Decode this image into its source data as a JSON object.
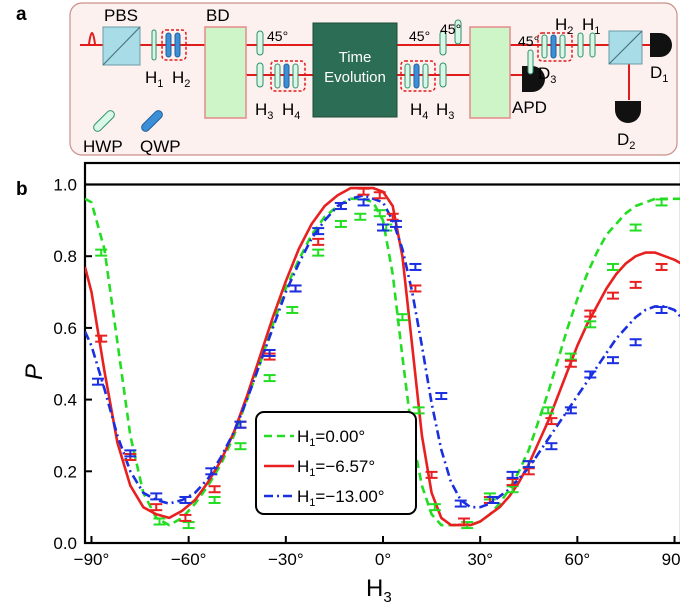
{
  "panel_a": {
    "label": "a",
    "labels": {
      "pbs": "PBS",
      "bd": "BD",
      "h1": "H",
      "h1_sub": "1",
      "h2": "H",
      "h2_sub": "2",
      "h3": "H",
      "h3_sub": "3",
      "h4": "H",
      "h4_sub": "4",
      "deg45_1": "45°",
      "deg45_2": "45°",
      "deg45_3": "45°",
      "deg45_4": "45°",
      "time_line1": "Time",
      "time_line2": "Evolution",
      "apd": "APD",
      "d3": "D",
      "d3_sub": "3",
      "d1": "D",
      "d1_sub": "1",
      "d2": "D",
      "d2_sub": "2",
      "h4b": "H",
      "h4b_sub": "4",
      "h3b": "H",
      "h3b_sub": "3",
      "h2b": "H",
      "h2b_sub": "2",
      "h1b": "H",
      "h1b_sub": "1",
      "hwp": "HWP",
      "qwp": "QWP"
    },
    "colors": {
      "panel_bg": "#fdf1ef",
      "panel_border": "#c98f8a",
      "beam": "#e01b1b",
      "hwp_fill": "#d8f7e6",
      "hwp_stroke": "#2f8f6a",
      "qwp_fill": "#3b8fd6",
      "qwp_stroke": "#1f5f9a",
      "bd_fill": "#cdf5c8",
      "bd_stroke": "#e48a8a",
      "pbs_fill": "#a8dde8",
      "time_box": "#2b6e55",
      "detector": "#111111"
    }
  },
  "panel_b": {
    "label": "b"
  },
  "chart_data": {
    "type": "line",
    "xlabel": "H",
    "xlabel_sub": "3",
    "ylabel": "P",
    "xlim": [
      -92,
      92
    ],
    "ylim": [
      0.0,
      1.06
    ],
    "xticks": [
      -90,
      -60,
      -30,
      0,
      30,
      60,
      90
    ],
    "xtick_labels": [
      "−90°",
      "−60°",
      "−30°",
      "0°",
      "30°",
      "60°",
      "90°"
    ],
    "yticks": [
      0.0,
      0.2,
      0.4,
      0.6,
      0.8,
      1.0
    ],
    "ytick_labels": [
      "0.0",
      "0.2",
      "0.4",
      "0.6",
      "0.8",
      "1.0"
    ],
    "reference_line_y": 1.0,
    "grid": false,
    "legend": "bottom-center",
    "series": [
      {
        "name": "H",
        "name_sub": "1",
        "name_value": "=0.00°",
        "color": "#22dd22",
        "dash": "8,5",
        "curve_x": [
          -92,
          -90,
          -86,
          -82,
          -78,
          -74,
          -70,
          -66,
          -62,
          -58,
          -54,
          -50,
          -46,
          -42,
          -38,
          -34,
          -30,
          -26,
          -22,
          -18,
          -14,
          -10,
          -6,
          -3,
          0,
          3,
          6,
          9,
          12,
          15,
          18,
          21,
          24,
          27,
          30,
          33,
          36,
          39,
          42,
          45,
          48,
          51,
          54,
          57,
          60,
          63,
          66,
          69,
          72,
          75,
          78,
          81,
          84,
          87,
          90,
          92
        ],
        "curve_y": [
          0.96,
          0.95,
          0.82,
          0.56,
          0.3,
          0.14,
          0.07,
          0.05,
          0.07,
          0.11,
          0.16,
          0.22,
          0.3,
          0.4,
          0.5,
          0.61,
          0.71,
          0.79,
          0.86,
          0.91,
          0.94,
          0.96,
          0.96,
          0.95,
          0.9,
          0.75,
          0.52,
          0.3,
          0.16,
          0.08,
          0.05,
          0.05,
          0.05,
          0.05,
          0.06,
          0.08,
          0.11,
          0.15,
          0.2,
          0.26,
          0.34,
          0.42,
          0.51,
          0.6,
          0.68,
          0.75,
          0.81,
          0.86,
          0.89,
          0.92,
          0.94,
          0.95,
          0.96,
          0.96,
          0.96,
          0.96
        ],
        "points_x": [
          -87,
          -78,
          -69,
          -60,
          -52,
          -44,
          -35,
          -28,
          -20,
          -13,
          -7,
          -1,
          1,
          6,
          11,
          16,
          26,
          33,
          40,
          45,
          51,
          58,
          64,
          71,
          78,
          86
        ],
        "points_y": [
          0.81,
          0.24,
          0.06,
          0.05,
          0.12,
          0.27,
          0.46,
          0.65,
          0.81,
          0.89,
          0.91,
          0.92,
          0.88,
          0.63,
          0.37,
          0.1,
          0.05,
          0.13,
          0.15,
          0.22,
          0.37,
          0.52,
          0.61,
          0.77,
          0.88,
          0.95
        ]
      },
      {
        "name": "H",
        "name_sub": "1",
        "name_value": "=−6.57°",
        "color": "#e82020",
        "dash": "",
        "curve_x": [
          -92,
          -90,
          -86,
          -82,
          -78,
          -74,
          -70,
          -66,
          -62,
          -58,
          -54,
          -50,
          -46,
          -42,
          -38,
          -34,
          -30,
          -26,
          -22,
          -18,
          -14,
          -10,
          -6,
          -3,
          0,
          3,
          6,
          9,
          12,
          15,
          18,
          21,
          24,
          27,
          30,
          33,
          36,
          39,
          42,
          45,
          48,
          51,
          54,
          57,
          60,
          63,
          66,
          69,
          72,
          75,
          78,
          81,
          84,
          87,
          90,
          92
        ],
        "curve_y": [
          0.77,
          0.7,
          0.48,
          0.28,
          0.16,
          0.1,
          0.08,
          0.07,
          0.09,
          0.12,
          0.17,
          0.23,
          0.31,
          0.41,
          0.52,
          0.63,
          0.73,
          0.82,
          0.89,
          0.94,
          0.97,
          0.99,
          0.99,
          0.99,
          0.98,
          0.94,
          0.8,
          0.55,
          0.3,
          0.14,
          0.07,
          0.05,
          0.05,
          0.05,
          0.06,
          0.08,
          0.1,
          0.13,
          0.17,
          0.22,
          0.28,
          0.34,
          0.41,
          0.48,
          0.55,
          0.61,
          0.66,
          0.71,
          0.75,
          0.78,
          0.8,
          0.81,
          0.81,
          0.8,
          0.79,
          0.78
        ],
        "points_x": [
          -87,
          -78,
          -70,
          -61,
          -52,
          -44,
          -35,
          -27,
          -20,
          -13,
          -6,
          -1,
          3,
          10,
          15,
          25,
          33,
          40,
          45,
          52,
          58,
          64,
          71,
          78,
          86
        ],
        "points_y": [
          0.57,
          0.24,
          0.1,
          0.07,
          0.15,
          0.33,
          0.52,
          0.71,
          0.84,
          0.94,
          0.98,
          0.97,
          0.91,
          0.71,
          0.19,
          0.06,
          0.12,
          0.17,
          0.2,
          0.34,
          0.5,
          0.64,
          0.69,
          0.72,
          0.77
        ]
      },
      {
        "name": "H",
        "name_sub": "1",
        "name_value": "=−13.00°",
        "color": "#1a2fe0",
        "dash": "9,4,2,4",
        "curve_x": [
          -92,
          -90,
          -86,
          -82,
          -78,
          -74,
          -70,
          -66,
          -62,
          -58,
          -54,
          -50,
          -46,
          -42,
          -38,
          -34,
          -30,
          -26,
          -22,
          -18,
          -14,
          -10,
          -6,
          -3,
          0,
          3,
          6,
          9,
          12,
          15,
          18,
          21,
          24,
          27,
          30,
          33,
          36,
          39,
          42,
          45,
          48,
          51,
          54,
          57,
          60,
          63,
          66,
          69,
          72,
          75,
          78,
          81,
          84,
          87,
          90,
          92
        ],
        "curve_y": [
          0.59,
          0.55,
          0.43,
          0.3,
          0.2,
          0.14,
          0.12,
          0.11,
          0.12,
          0.14,
          0.18,
          0.24,
          0.31,
          0.4,
          0.5,
          0.6,
          0.7,
          0.78,
          0.85,
          0.9,
          0.94,
          0.96,
          0.97,
          0.96,
          0.95,
          0.9,
          0.82,
          0.7,
          0.55,
          0.39,
          0.26,
          0.17,
          0.12,
          0.1,
          0.1,
          0.11,
          0.13,
          0.15,
          0.18,
          0.21,
          0.25,
          0.29,
          0.33,
          0.37,
          0.41,
          0.45,
          0.49,
          0.53,
          0.57,
          0.6,
          0.63,
          0.65,
          0.66,
          0.66,
          0.65,
          0.63
        ],
        "points_x": [
          -88,
          -78,
          -70,
          -61,
          -53,
          -44,
          -35,
          -27,
          -20,
          -13,
          -6,
          0,
          4,
          10,
          18,
          24,
          34,
          40,
          45,
          52,
          58,
          64,
          71,
          78,
          86
        ],
        "points_y": [
          0.45,
          0.25,
          0.13,
          0.12,
          0.2,
          0.33,
          0.53,
          0.71,
          0.87,
          0.94,
          0.95,
          0.88,
          0.89,
          0.77,
          0.41,
          0.11,
          0.12,
          0.19,
          0.22,
          0.27,
          0.37,
          0.47,
          0.51,
          0.56,
          0.65
        ]
      }
    ]
  }
}
